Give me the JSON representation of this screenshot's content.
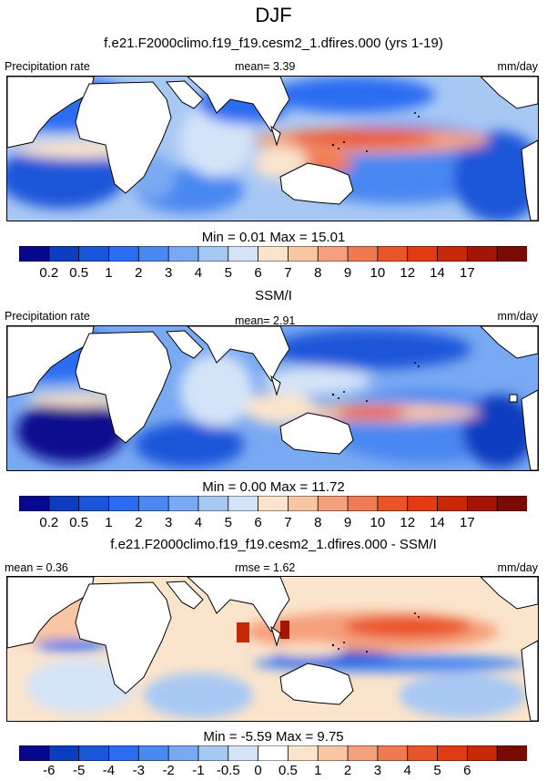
{
  "header": {
    "title": "DJF",
    "subtitle": "f.e21.F2000climo.f19_f19.cesm2_1.dfires.000 (yrs 1-19)"
  },
  "panels": [
    {
      "left_label": "Precipitation rate",
      "center_label": "mean=   3.39",
      "right_label": "mm/day",
      "minmax": "Min =   0.01 Max =  15.01"
    },
    {
      "heading": "SSM/I",
      "left_label": "Precipitation rate",
      "center_label": "mean=   2.91",
      "right_label": "mm/day",
      "minmax": "Min =   0.00 Max =  11.72"
    },
    {
      "heading": "f.e21.F2000climo.f19_f19.cesm2_1.dfires.000 - SSM/I",
      "left_label": "mean =   0.36",
      "center_label": "rmse =   1.62",
      "right_label": "mm/day",
      "minmax": "Min =  -5.59 Max =   9.75"
    }
  ],
  "colorbars": {
    "precip": {
      "colors": [
        "#08088f",
        "#0c3cc0",
        "#1a56d9",
        "#2b6cf2",
        "#4a88f2",
        "#79a9f2",
        "#a8c8f4",
        "#d4e4f8",
        "#fbe4cc",
        "#f9c6a4",
        "#f5a07c",
        "#f07a52",
        "#ea5429",
        "#e23a12",
        "#c82808",
        "#a51505",
        "#7a0a03"
      ],
      "ticks": [
        "0.2",
        "0.5",
        "1",
        "2",
        "3",
        "4",
        "5",
        "6",
        "7",
        "8",
        "9",
        "10",
        "12",
        "14",
        "17"
      ]
    },
    "diff": {
      "colors": [
        "#08088f",
        "#0c3cc0",
        "#1a56d9",
        "#2b6cf2",
        "#4a88f2",
        "#79a9f2",
        "#a8c8f4",
        "#d4e4f8",
        "#ffffff",
        "#fbe4cc",
        "#f9c6a4",
        "#f5a07c",
        "#f07a52",
        "#ea5429",
        "#e23a12",
        "#c82808",
        "#7a0a03"
      ],
      "ticks": [
        "-6",
        "-5",
        "-4",
        "-3",
        "-2",
        "-1",
        "-0.5",
        "0",
        "0.5",
        "1",
        "2",
        "3",
        "4",
        "5",
        "6"
      ]
    }
  },
  "chart_data": [
    {
      "type": "heatmap",
      "title": "f.e21.F2000climo.f19_f19.cesm2_1.dfires.000 (yrs 1-19)",
      "variable": "Precipitation rate",
      "units": "mm/day",
      "mean": 3.39,
      "min": 0.01,
      "max": 15.01,
      "levels": [
        0.2,
        0.5,
        1,
        2,
        3,
        4,
        5,
        6,
        7,
        8,
        9,
        10,
        12,
        14,
        17
      ]
    },
    {
      "type": "heatmap",
      "title": "SSM/I",
      "variable": "Precipitation rate",
      "units": "mm/day",
      "mean": 2.91,
      "min": 0.0,
      "max": 11.72,
      "levels": [
        0.2,
        0.5,
        1,
        2,
        3,
        4,
        5,
        6,
        7,
        8,
        9,
        10,
        12,
        14,
        17
      ]
    },
    {
      "type": "heatmap",
      "title": "f.e21.F2000climo.f19_f19.cesm2_1.dfires.000 - SSM/I",
      "units": "mm/day",
      "mean": 0.36,
      "rmse": 1.62,
      "min": -5.59,
      "max": 9.75,
      "levels": [
        -6,
        -5,
        -4,
        -3,
        -2,
        -1,
        -0.5,
        0,
        0.5,
        1,
        2,
        3,
        4,
        5,
        6
      ]
    }
  ]
}
